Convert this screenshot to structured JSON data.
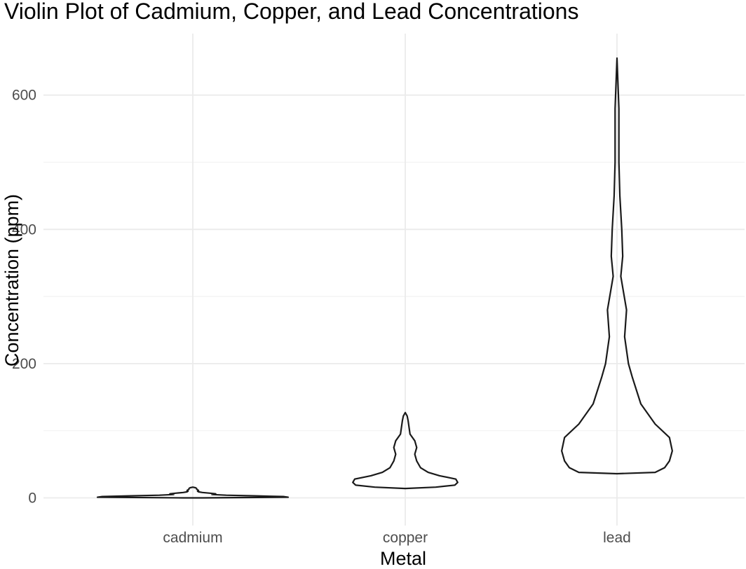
{
  "chart_data": {
    "type": "violin",
    "title": "Violin Plot of Cadmium, Copper, and Lead Concentrations",
    "xlabel": "Metal",
    "ylabel": "Concentration (ppm)",
    "categories": [
      "cadmium",
      "copper",
      "lead"
    ],
    "ylim": [
      -15,
      680
    ],
    "y_ticks": [
      0,
      200,
      400,
      600
    ],
    "y_tick_labels": [
      "0",
      "200",
      "400",
      "600"
    ],
    "grid": true,
    "legend": "none",
    "violins": [
      {
        "category": "cadmium",
        "range": [
          0,
          16
        ],
        "density_profile": [
          [
            0,
            0.1
          ],
          [
            1,
            1.0
          ],
          [
            2,
            0.95
          ],
          [
            3,
            0.65
          ],
          [
            4,
            0.35
          ],
          [
            5,
            0.2
          ],
          [
            6,
            0.24
          ],
          [
            7,
            0.18
          ],
          [
            8,
            0.1
          ],
          [
            9,
            0.06
          ],
          [
            10,
            0.05
          ],
          [
            11,
            0.06
          ],
          [
            12,
            0.05
          ],
          [
            13,
            0.04
          ],
          [
            14,
            0.04
          ],
          [
            15,
            0.03
          ],
          [
            16,
            0.0
          ]
        ]
      },
      {
        "category": "copper",
        "range": [
          14,
          127
        ],
        "density_profile": [
          [
            14,
            0.0
          ],
          [
            16,
            0.32
          ],
          [
            19,
            0.52
          ],
          [
            23,
            0.55
          ],
          [
            28,
            0.53
          ],
          [
            33,
            0.36
          ],
          [
            38,
            0.24
          ],
          [
            45,
            0.16
          ],
          [
            55,
            0.12
          ],
          [
            65,
            0.1
          ],
          [
            75,
            0.12
          ],
          [
            85,
            0.1
          ],
          [
            95,
            0.05
          ],
          [
            105,
            0.04
          ],
          [
            115,
            0.03
          ],
          [
            122,
            0.02
          ],
          [
            127,
            0.0
          ]
        ]
      },
      {
        "category": "lead",
        "range": [
          36,
          655
        ],
        "density_profile": [
          [
            36,
            0.0
          ],
          [
            38,
            0.4
          ],
          [
            45,
            0.5
          ],
          [
            55,
            0.55
          ],
          [
            70,
            0.58
          ],
          [
            90,
            0.55
          ],
          [
            110,
            0.4
          ],
          [
            140,
            0.25
          ],
          [
            180,
            0.16
          ],
          [
            200,
            0.12
          ],
          [
            240,
            0.08
          ],
          [
            280,
            0.1
          ],
          [
            330,
            0.04
          ],
          [
            360,
            0.06
          ],
          [
            400,
            0.05
          ],
          [
            450,
            0.03
          ],
          [
            500,
            0.02
          ],
          [
            580,
            0.02
          ],
          [
            655,
            0.0
          ]
        ]
      }
    ]
  }
}
